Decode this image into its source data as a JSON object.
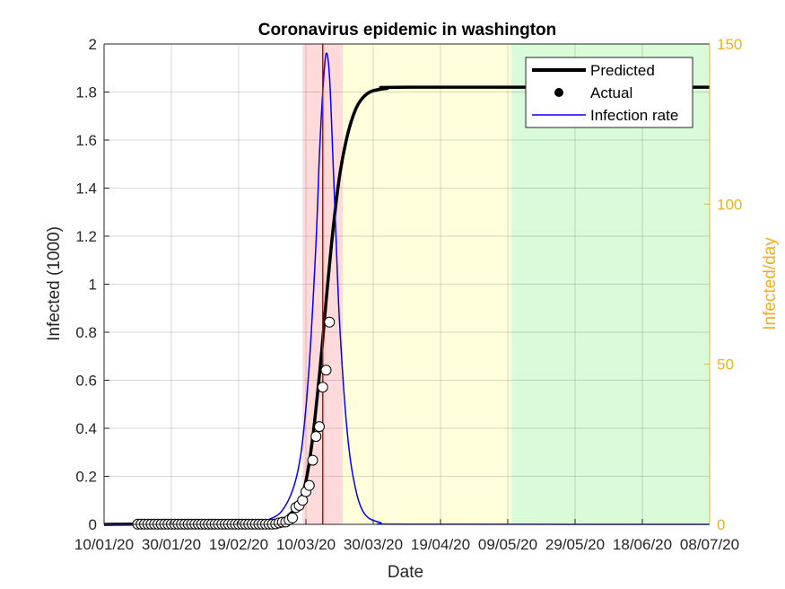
{
  "chart_data": {
    "type": "line",
    "title": "Coronavirus epidemic in washington",
    "xlabel": "Date",
    "ylabel": "Infected (1000)",
    "ylabel_right": "Infected/day",
    "ylim": [
      0,
      2
    ],
    "ylim_right": [
      0,
      150
    ],
    "x_tick_labels": [
      "10/01/20",
      "30/01/20",
      "19/02/20",
      "10/03/20",
      "30/03/20",
      "19/04/20",
      "09/05/20",
      "29/05/20",
      "18/06/20",
      "08/07/20"
    ],
    "xlim": [
      "2020-01-10",
      "2020-07-08"
    ],
    "y_ticks": [
      0,
      0.2,
      0.4,
      0.6,
      0.8,
      1,
      1.2,
      1.4,
      1.6,
      1.8,
      2
    ],
    "y_ticks_right": [
      0,
      50,
      100,
      150
    ],
    "grid": true,
    "legend": {
      "placement": "top-right",
      "entries": [
        "Predicted",
        "Actual",
        "Infection rate"
      ]
    },
    "phase_regions": [
      {
        "start": "2020-03-09",
        "end": "2020-03-21",
        "color": "#ffdada"
      },
      {
        "start": "2020-03-21",
        "end": "2020-05-10",
        "color": "#ffffdc"
      },
      {
        "start": "2020-05-10",
        "end": "2020-07-08",
        "color": "#d9fbd9"
      }
    ],
    "marker_line": {
      "date": "2020-03-15",
      "color": "#e00000"
    },
    "predicted": {
      "name": "Predicted",
      "x": [
        "2020-01-10",
        "2020-02-29",
        "2020-03-05",
        "2020-03-08",
        "2020-03-10",
        "2020-03-12",
        "2020-03-14",
        "2020-03-15",
        "2020-03-16",
        "2020-03-18",
        "2020-03-20",
        "2020-03-22",
        "2020-03-24",
        "2020-03-26",
        "2020-03-29",
        "2020-04-03",
        "2020-04-10",
        "2020-07-08"
      ],
      "y": [
        0,
        0.01,
        0.04,
        0.09,
        0.18,
        0.36,
        0.62,
        0.77,
        0.93,
        1.22,
        1.45,
        1.6,
        1.7,
        1.76,
        1.8,
        1.815,
        1.82,
        1.82
      ]
    },
    "infection_rate": {
      "name": "Infection rate",
      "x": [
        "2020-01-10",
        "2020-02-20",
        "2020-02-29",
        "2020-03-04",
        "2020-03-07",
        "2020-03-09",
        "2020-03-11",
        "2020-03-13",
        "2020-03-14",
        "2020-03-15",
        "2020-03-16",
        "2020-03-17",
        "2020-03-18",
        "2020-03-19",
        "2020-03-20",
        "2020-03-22",
        "2020-03-24",
        "2020-03-27",
        "2020-04-01",
        "2020-04-10",
        "2020-07-08"
      ],
      "y": [
        0,
        0.2,
        2,
        6,
        14,
        26,
        50,
        88,
        115,
        135,
        147,
        140,
        115,
        88,
        63,
        32,
        15,
        4,
        0.6,
        0.05,
        0
      ]
    },
    "actual": {
      "name": "Actual",
      "x": [
        "2020-01-20",
        "2020-01-21",
        "2020-01-22",
        "2020-01-23",
        "2020-01-24",
        "2020-01-25",
        "2020-01-26",
        "2020-01-27",
        "2020-01-28",
        "2020-01-29",
        "2020-01-30",
        "2020-01-31",
        "2020-02-01",
        "2020-02-02",
        "2020-02-03",
        "2020-02-04",
        "2020-02-05",
        "2020-02-06",
        "2020-02-07",
        "2020-02-08",
        "2020-02-09",
        "2020-02-10",
        "2020-02-11",
        "2020-02-12",
        "2020-02-13",
        "2020-02-14",
        "2020-02-15",
        "2020-02-16",
        "2020-02-17",
        "2020-02-18",
        "2020-02-19",
        "2020-02-20",
        "2020-02-21",
        "2020-02-22",
        "2020-02-23",
        "2020-02-24",
        "2020-02-25",
        "2020-02-26",
        "2020-02-27",
        "2020-02-28",
        "2020-02-29",
        "2020-03-01",
        "2020-03-02",
        "2020-03-03",
        "2020-03-04",
        "2020-03-05",
        "2020-03-06",
        "2020-03-07",
        "2020-03-08",
        "2020-03-09",
        "2020-03-10",
        "2020-03-11",
        "2020-03-12",
        "2020-03-13",
        "2020-03-14",
        "2020-03-15"
      ],
      "y": [
        0.001,
        0.001,
        0.001,
        0.001,
        0.001,
        0.001,
        0.001,
        0.001,
        0.001,
        0.001,
        0.001,
        0.001,
        0.001,
        0.001,
        0.001,
        0.001,
        0.001,
        0.001,
        0.001,
        0.001,
        0.001,
        0.001,
        0.001,
        0.001,
        0.001,
        0.001,
        0.001,
        0.001,
        0.001,
        0.001,
        0.001,
        0.001,
        0.001,
        0.001,
        0.001,
        0.001,
        0.001,
        0.001,
        0.001,
        0.001,
        0.001,
        0.002,
        0.006,
        0.009,
        0.01,
        0.018,
        0.027,
        0.07,
        0.079,
        0.1,
        0.136,
        0.162,
        0.267,
        0.366,
        0.407,
        0.571
      ]
    },
    "actual_extra": {
      "x": [
        "2020-03-16",
        "2020-03-17"
      ],
      "y": [
        0.642,
        0.842
      ]
    }
  }
}
